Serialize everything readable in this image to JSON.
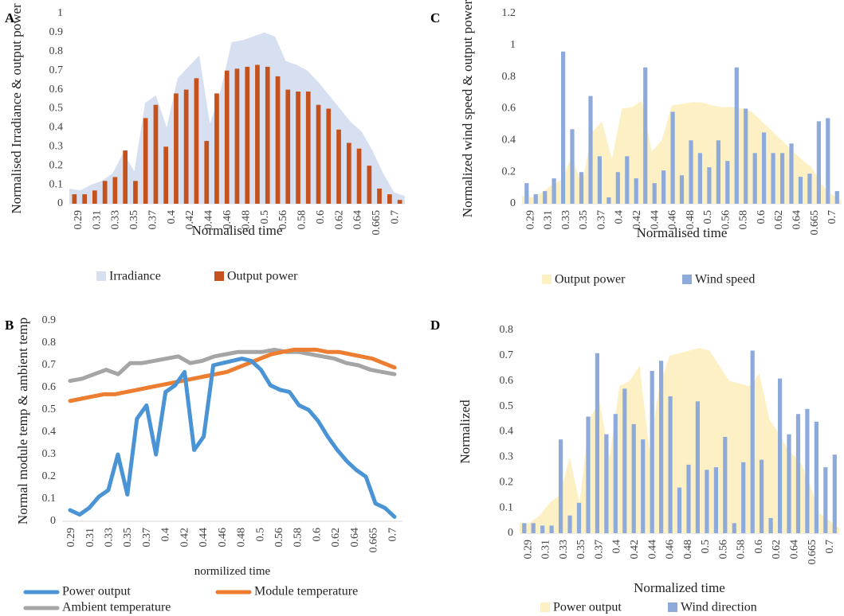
{
  "colors": {
    "irradiance": "#d7e0f1",
    "output_power_bar": "#c5511d",
    "output_power_area": "#fdf0c5",
    "wind_bar": "#8eaadb",
    "power_line": "#4a94d6",
    "module_line": "#ed7d31",
    "ambient_line": "#a5a5a5",
    "axis": "#d9d9d9",
    "text": "#595959"
  },
  "x_ticks": [
    "0.29",
    "0.31",
    "0.33",
    "0.35",
    "0.37",
    "0.4",
    "0.42",
    "0.44",
    "0.46",
    "0.48",
    "0.5",
    "0.56",
    "0.58",
    "0.6",
    "0.62",
    "0.64",
    "0.665",
    "0.7"
  ],
  "chart_data": [
    {
      "panel": "A",
      "type": "bar+area",
      "xlabel": "Normalised time",
      "ylabel": "Normalised Irradiance & output power",
      "ylim": [
        0,
        1
      ],
      "yticks": [
        "0",
        "0.1",
        "0.2",
        "0.3",
        "0.4",
        "0.5",
        "0.6",
        "0.7",
        "0.8",
        "0.9",
        "1"
      ],
      "legend": "bottom",
      "series": [
        {
          "name": "Irradiance",
          "kind": "area",
          "values": [
            0.08,
            0.07,
            0.1,
            0.12,
            0.16,
            0.27,
            0.17,
            0.53,
            0.57,
            0.4,
            0.66,
            0.72,
            0.78,
            0.42,
            0.6,
            0.85,
            0.86,
            0.88,
            0.9,
            0.88,
            0.75,
            0.73,
            0.7,
            0.64,
            0.57,
            0.5,
            0.43,
            0.38,
            0.28,
            0.16,
            0.06,
            0.04
          ]
        },
        {
          "name": "Output power",
          "kind": "bar",
          "values": [
            0.05,
            0.05,
            0.07,
            0.12,
            0.14,
            0.28,
            0.12,
            0.45,
            0.52,
            0.3,
            0.58,
            0.6,
            0.66,
            0.33,
            0.58,
            0.7,
            0.71,
            0.72,
            0.73,
            0.72,
            0.67,
            0.6,
            0.59,
            0.59,
            0.52,
            0.5,
            0.39,
            0.32,
            0.29,
            0.2,
            0.08,
            0.05,
            0.02
          ]
        }
      ]
    },
    {
      "panel": "B",
      "type": "line",
      "xlabel": "normilized time",
      "ylabel": "Normal module temp & ambient temp",
      "ylim": [
        0,
        0.9
      ],
      "yticks": [
        "0",
        "0.1",
        "0.2",
        "0.3",
        "0.4",
        "0.5",
        "0.6",
        "0.7",
        "0.8",
        "0.9"
      ],
      "legend": "bottom",
      "series": [
        {
          "name": "Power output",
          "values": [
            0.05,
            0.03,
            0.06,
            0.11,
            0.14,
            0.3,
            0.12,
            0.46,
            0.52,
            0.3,
            0.58,
            0.61,
            0.67,
            0.32,
            0.38,
            0.7,
            0.71,
            0.72,
            0.73,
            0.72,
            0.68,
            0.61,
            0.59,
            0.58,
            0.52,
            0.5,
            0.45,
            0.38,
            0.32,
            0.27,
            0.23,
            0.2,
            0.08,
            0.06,
            0.02
          ]
        },
        {
          "name": "Module temperature",
          "values": [
            0.54,
            0.55,
            0.56,
            0.57,
            0.57,
            0.58,
            0.59,
            0.6,
            0.61,
            0.62,
            0.63,
            0.64,
            0.65,
            0.66,
            0.67,
            0.69,
            0.71,
            0.73,
            0.75,
            0.76,
            0.77,
            0.77,
            0.77,
            0.76,
            0.76,
            0.75,
            0.74,
            0.73,
            0.71,
            0.69
          ]
        },
        {
          "name": "Ambient temperature",
          "values": [
            0.63,
            0.64,
            0.66,
            0.68,
            0.66,
            0.71,
            0.71,
            0.72,
            0.73,
            0.74,
            0.71,
            0.72,
            0.74,
            0.75,
            0.76,
            0.76,
            0.76,
            0.77,
            0.76,
            0.76,
            0.75,
            0.74,
            0.73,
            0.71,
            0.7,
            0.68,
            0.67,
            0.66
          ]
        }
      ]
    },
    {
      "panel": "C",
      "type": "bar+area",
      "xlabel": "Normalised time",
      "ylabel": "Normalized wind speed & output power",
      "ylim": [
        0,
        1.2
      ],
      "yticks": [
        "0",
        "0.2",
        "0.4",
        "0.6",
        "0.8",
        "1",
        "1.2"
      ],
      "legend": "bottom",
      "series": [
        {
          "name": "Output power",
          "kind": "area",
          "values": [
            0.05,
            0.04,
            0.07,
            0.12,
            0.15,
            0.3,
            0.12,
            0.45,
            0.52,
            0.28,
            0.6,
            0.61,
            0.65,
            0.33,
            0.4,
            0.62,
            0.63,
            0.64,
            0.64,
            0.62,
            0.61,
            0.61,
            0.6,
            0.58,
            0.52,
            0.46,
            0.4,
            0.34,
            0.28,
            0.23,
            0.12,
            0.06,
            0.02
          ]
        },
        {
          "name": "Wind speed",
          "kind": "bar",
          "values": [
            0.13,
            0.06,
            0.08,
            0.16,
            0.96,
            0.47,
            0.2,
            0.68,
            0.3,
            0.04,
            0.2,
            0.3,
            0.16,
            0.86,
            0.13,
            0.21,
            0.58,
            0.18,
            0.4,
            0.32,
            0.23,
            0.4,
            0.27,
            0.86,
            0.6,
            0.32,
            0.45,
            0.32,
            0.32,
            0.38,
            0.17,
            0.19,
            0.52,
            0.54,
            0.08
          ]
        }
      ]
    },
    {
      "panel": "D",
      "type": "bar+area",
      "xlabel": "Normalized time",
      "ylabel": "Normalized",
      "ylim": [
        0,
        0.8
      ],
      "yticks": [
        "0",
        "0.1",
        "0.2",
        "0.3",
        "0.4",
        "0.5",
        "0.6",
        "0.7",
        "0.8"
      ],
      "legend": "bottom",
      "series": [
        {
          "name": "Power output",
          "kind": "area",
          "values": [
            0.04,
            0.04,
            0.07,
            0.12,
            0.15,
            0.3,
            0.12,
            0.45,
            0.52,
            0.3,
            0.58,
            0.6,
            0.66,
            0.33,
            0.58,
            0.7,
            0.71,
            0.72,
            0.73,
            0.72,
            0.66,
            0.6,
            0.59,
            0.58,
            0.63,
            0.45,
            0.39,
            0.32,
            0.29,
            0.2,
            0.08,
            0.05,
            0.02
          ]
        },
        {
          "name": "Wind direction",
          "kind": "bar",
          "values": [
            0.04,
            0.04,
            0.03,
            0.03,
            0.37,
            0.07,
            0.12,
            0.46,
            0.71,
            0.39,
            0.47,
            0.57,
            0.43,
            0.37,
            0.64,
            0.68,
            0.54,
            0.18,
            0.27,
            0.52,
            0.25,
            0.26,
            0.38,
            0.04,
            0.28,
            0.72,
            0.29,
            0.06,
            0.61,
            0.39,
            0.47,
            0.49,
            0.44,
            0.26,
            0.31
          ]
        }
      ]
    }
  ],
  "panel_letters": [
    "A",
    "B",
    "C",
    "D"
  ],
  "legend_labels": {
    "A": [
      "Irradiance",
      "Output power"
    ],
    "B": [
      "Power output",
      "Module temperature",
      "Ambient temperature"
    ],
    "C": [
      "Output power",
      "Wind speed"
    ],
    "D": [
      "Power output",
      "Wind direction"
    ]
  }
}
